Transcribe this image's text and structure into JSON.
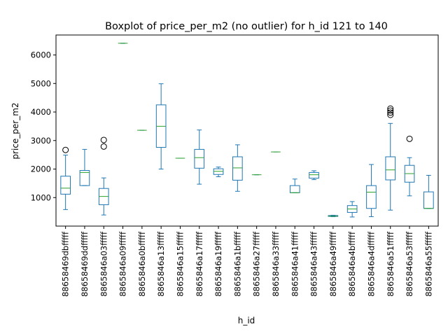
{
  "chart_data": {
    "type": "boxplot",
    "title": "Boxplot of price_per_m2 (no outlier) for h_id 121 to 140",
    "xlabel": "h_id",
    "ylabel": "price_per_m2",
    "ylim": [
      0,
      6700
    ],
    "yticks": [
      1000,
      2000,
      3000,
      4000,
      5000,
      6000
    ],
    "grid": false,
    "colors": {
      "box": "#1f77b4",
      "median": "#2ca02c",
      "outlier": "#000000",
      "axis": "#000000"
    },
    "categories": [
      "88658469dbfffff",
      "88658469ddfffff",
      "8865846a03fffff",
      "8865846a09fffff",
      "8865846a0bfffff",
      "8865846a13fffff",
      "8865846a15fffff",
      "8865846a17fffff",
      "8865846a19fffff",
      "8865846a1bfffff",
      "8865846a27fffff",
      "8865846a33fffff",
      "8865846a41fffff",
      "8865846a43fffff",
      "8865846a49fffff",
      "8865846a4bfffff",
      "8865846a4dfffff",
      "8865846a51fffff",
      "8865846a53fffff",
      "8865846a55fffff"
    ],
    "boxes": [
      {
        "whislo": 580,
        "q1": 1120,
        "med": 1330,
        "q3": 1750,
        "whishi": 2490,
        "fliers": [
          2670
        ]
      },
      {
        "whislo": 1420,
        "q1": 1420,
        "med": 1880,
        "q3": 1950,
        "whishi": 2690,
        "fliers": []
      },
      {
        "whislo": 390,
        "q1": 750,
        "med": 1040,
        "q3": 1320,
        "whishi": 1690,
        "fliers": [
          2790,
          3020
        ]
      },
      {
        "whislo": 6410,
        "q1": 6410,
        "med": 6410,
        "q3": 6410,
        "whishi": 6410,
        "fliers": []
      },
      {
        "whislo": 3360,
        "q1": 3360,
        "med": 3360,
        "q3": 3360,
        "whishi": 3360,
        "fliers": []
      },
      {
        "whislo": 2000,
        "q1": 2760,
        "med": 3500,
        "q3": 4250,
        "whishi": 4990,
        "fliers": []
      },
      {
        "whislo": 2380,
        "q1": 2380,
        "med": 2380,
        "q3": 2380,
        "whishi": 2380,
        "fliers": []
      },
      {
        "whislo": 1470,
        "q1": 2030,
        "med": 2400,
        "q3": 2690,
        "whishi": 3370,
        "fliers": []
      },
      {
        "whislo": 1730,
        "q1": 1810,
        "med": 1920,
        "q3": 2010,
        "whishi": 2070,
        "fliers": []
      },
      {
        "whislo": 1220,
        "q1": 1610,
        "med": 2040,
        "q3": 2430,
        "whishi": 2850,
        "fliers": []
      },
      {
        "whislo": 1800,
        "q1": 1800,
        "med": 1800,
        "q3": 1800,
        "whishi": 1800,
        "fliers": []
      },
      {
        "whislo": 2600,
        "q1": 2600,
        "med": 2600,
        "q3": 2600,
        "whishi": 2600,
        "fliers": []
      },
      {
        "whislo": 1170,
        "q1": 1170,
        "med": 1170,
        "q3": 1420,
        "whishi": 1650,
        "fliers": []
      },
      {
        "whislo": 1630,
        "q1": 1680,
        "med": 1800,
        "q3": 1880,
        "whishi": 1940,
        "fliers": []
      },
      {
        "whislo": 330,
        "q1": 340,
        "med": 350,
        "q3": 370,
        "whishi": 380,
        "fliers": []
      },
      {
        "whislo": 320,
        "q1": 480,
        "med": 600,
        "q3": 720,
        "whishi": 860,
        "fliers": []
      },
      {
        "whislo": 330,
        "q1": 620,
        "med": 1190,
        "q3": 1420,
        "whishi": 2160,
        "fliers": []
      },
      {
        "whislo": 560,
        "q1": 1620,
        "med": 1970,
        "q3": 2430,
        "whishi": 3600,
        "fliers": [
          3900,
          3980,
          4050,
          4120
        ]
      },
      {
        "whislo": 1060,
        "q1": 1540,
        "med": 1840,
        "q3": 2130,
        "whishi": 2400,
        "fliers": [
          3060
        ]
      },
      {
        "whislo": 620,
        "q1": 620,
        "med": 620,
        "q3": 1200,
        "whishi": 1780,
        "fliers": []
      }
    ]
  }
}
